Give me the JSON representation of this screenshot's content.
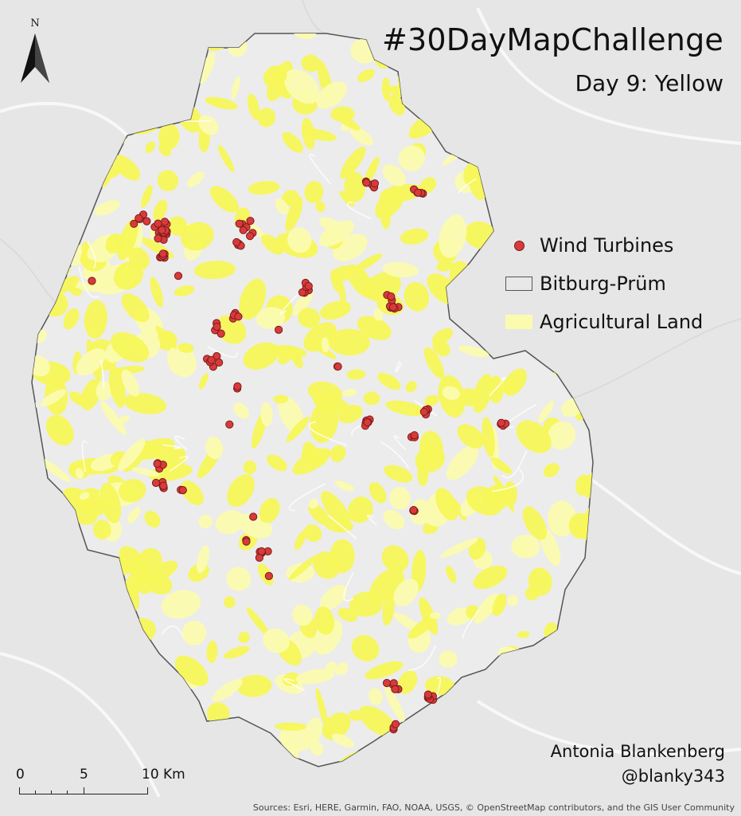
{
  "map": {
    "title": "#30DayMapChallenge",
    "subtitle": "Day 9: Yellow",
    "north_label": "N",
    "legend": [
      {
        "symbol": "red-dot",
        "label": "Wind Turbines"
      },
      {
        "symbol": "gray-outline",
        "label": "Bitburg-Prüm"
      },
      {
        "symbol": "yellow-fill",
        "label": "Agricultural Land"
      }
    ],
    "scale": {
      "ticks": [
        "0",
        "5",
        "10 Km"
      ]
    },
    "author": {
      "name": "Antonia Blankenberg",
      "handle": "@blanky343"
    },
    "credits": "Sources: Esri, HERE, Garmin, FAO, NOAA, USGS, © OpenStreetMap contributors, and the GIS User Community",
    "colors": {
      "background": "#e6e6e6",
      "region_fill": "#ececec",
      "region_outline": "#555555",
      "agricultural": "#f7f75a",
      "agricultural_light": "#fbfbb0",
      "turbine_fill": "#d83a3a",
      "turbine_stroke": "#7a1b1b"
    }
  }
}
